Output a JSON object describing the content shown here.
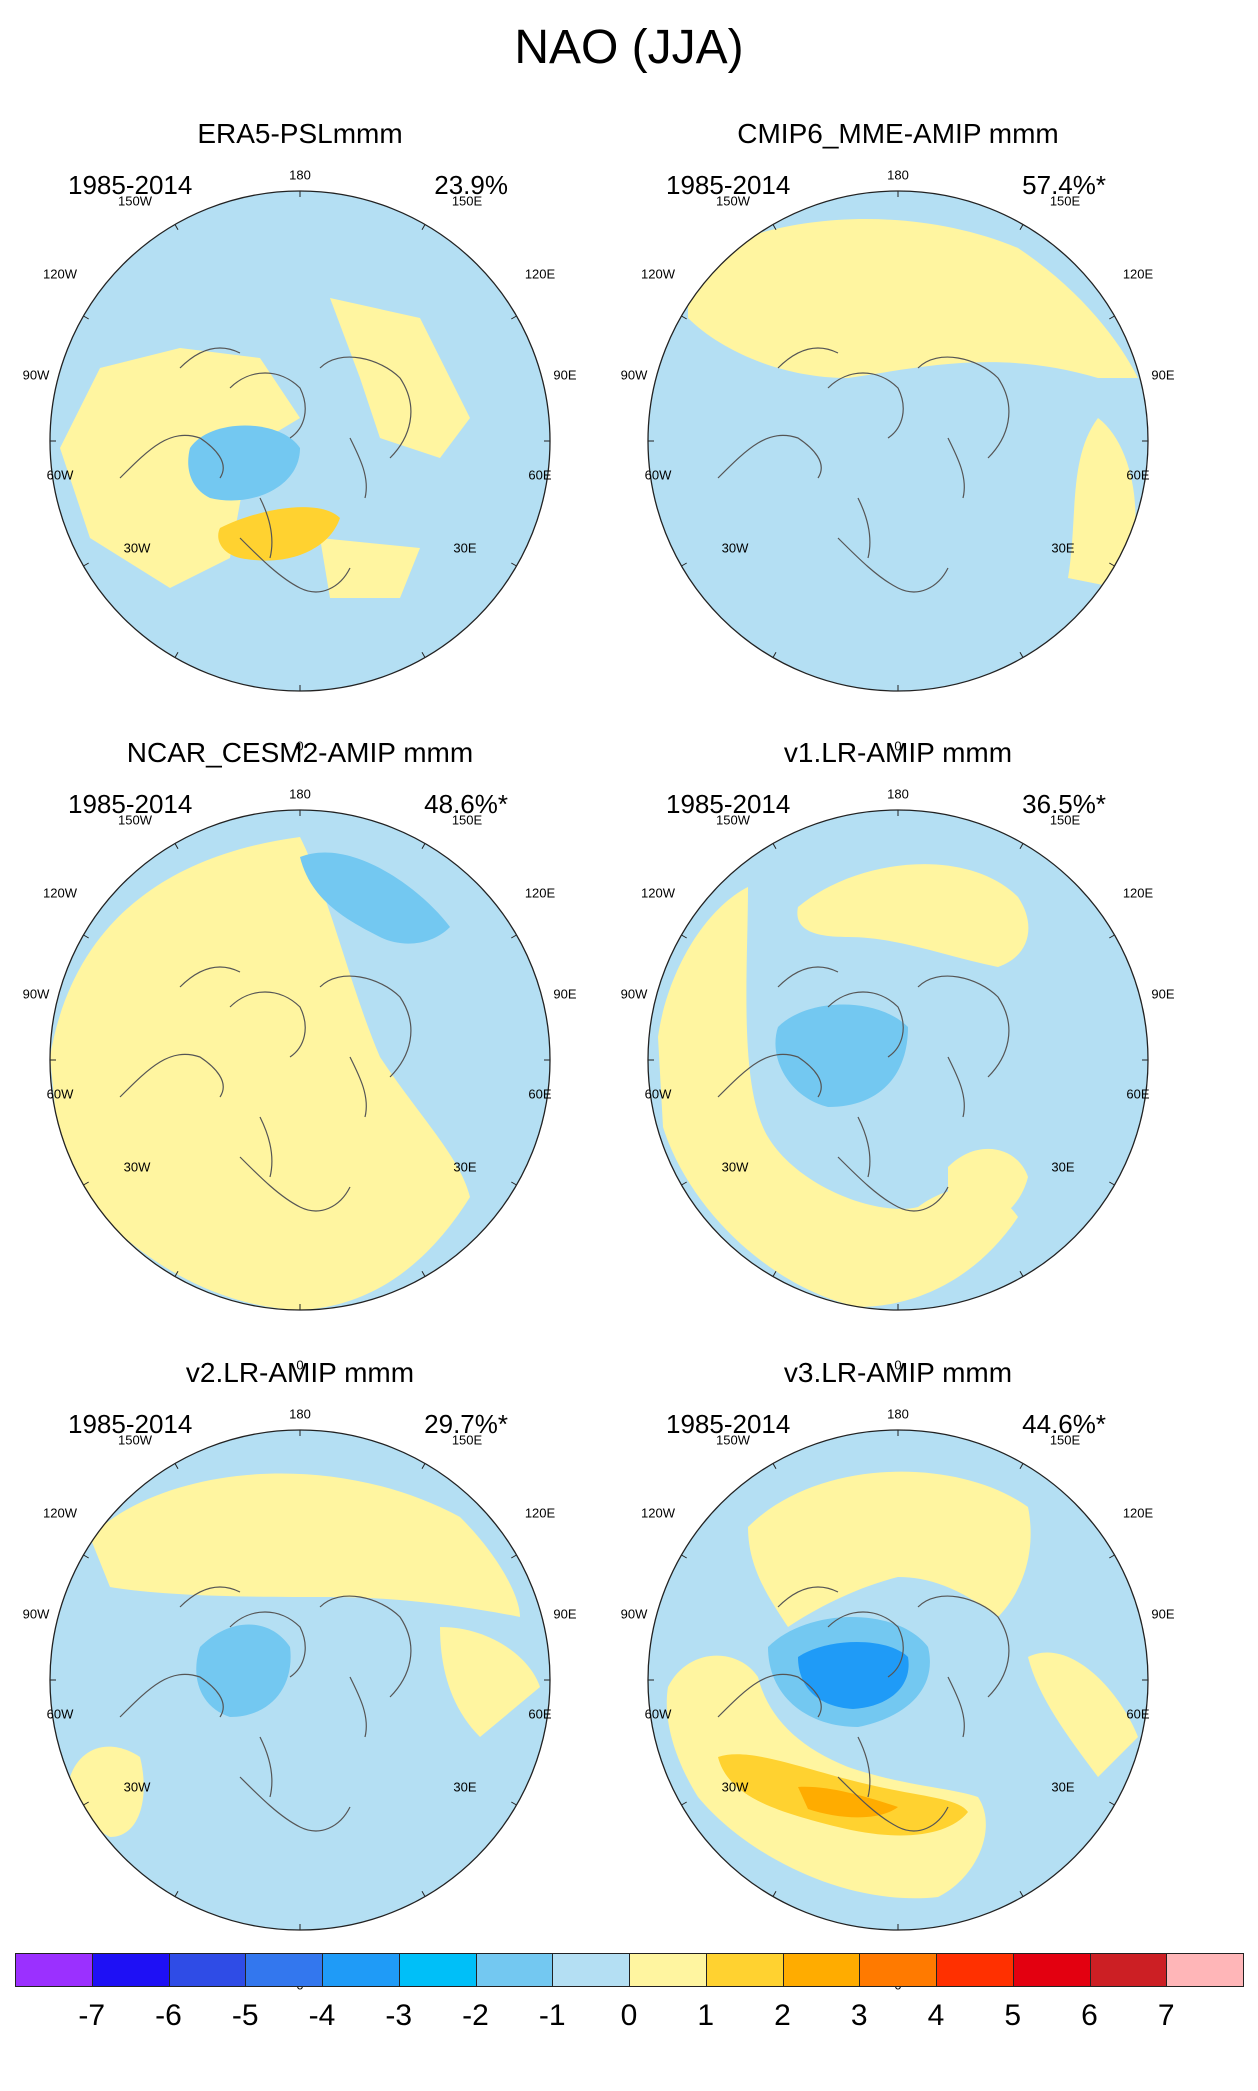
{
  "figure": {
    "title": "NAO (JJA)"
  },
  "common": {
    "period": "1985-2014",
    "lon_labels": {
      "top": "180",
      "bottom": "0",
      "ul": "150W",
      "ur": "150E",
      "lu": "120W",
      "ru": "120E",
      "lm": "90W",
      "rm": "90E",
      "ll": "60W",
      "rl": "60E",
      "bl": "30W",
      "br": "30E"
    }
  },
  "panels": [
    {
      "title": "ERA5-PSLmmm",
      "percent": "23.9%"
    },
    {
      "title": "CMIP6_MME-AMIP  mmm",
      "percent": "57.4%*"
    },
    {
      "title": "NCAR_CESM2-AMIP  mmm",
      "percent": "48.6%*"
    },
    {
      "title": "v1.LR-AMIP  mmm",
      "percent": "36.5%*"
    },
    {
      "title": "v2.LR-AMIP  mmm",
      "percent": "29.7%*"
    },
    {
      "title": "v3.LR-AMIP  mmm",
      "percent": "44.6%*"
    }
  ],
  "colorbar": {
    "labels": [
      "-7",
      "-6",
      "-5",
      "-4",
      "-3",
      "-2",
      "-1",
      "0",
      "1",
      "2",
      "3",
      "4",
      "5",
      "6",
      "7"
    ],
    "colors": [
      "#9B30FF",
      "#1E10F5",
      "#2F4CE6",
      "#3377EE",
      "#1F9BF7",
      "#00BFF8",
      "#73C8F1",
      "#B4DFF3",
      "#FFF5A0",
      "#FFD230",
      "#FFAC00",
      "#FF7A00",
      "#FF3000",
      "#E30010",
      "#CC1F24",
      "#FFB6B8"
    ]
  }
}
